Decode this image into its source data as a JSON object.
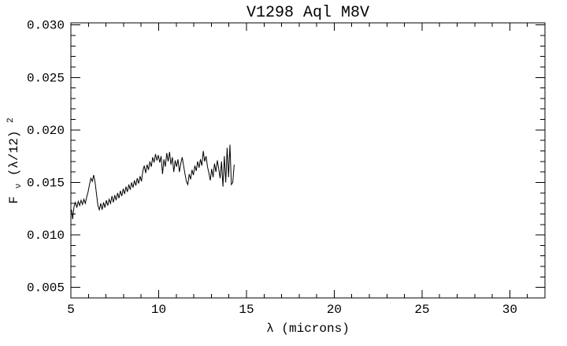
{
  "window": {
    "background": "#ffffff",
    "foreground": "#000000"
  },
  "chart_data": {
    "type": "line",
    "title": "V1298 Aql M8V",
    "xlabel": "λ (microns)",
    "ylabel": "Fν(λ/12)²",
    "ylabel_parts": {
      "base": "F",
      "sub": "ν",
      "mid": "(λ/12)",
      "sup": "2"
    },
    "xlim": [
      5,
      32
    ],
    "ylim": [
      0.004,
      0.0302
    ],
    "grid": false,
    "legend": "none",
    "line_color": "#000000",
    "x_ticks": {
      "major": [
        5,
        10,
        15,
        20,
        25,
        30
      ],
      "labels": [
        "5",
        "10",
        "15",
        "20",
        "25",
        "30"
      ],
      "minor_step": 1
    },
    "y_ticks": {
      "major": [
        0.005,
        0.01,
        0.015,
        0.02,
        0.025,
        0.03
      ],
      "labels": [
        "0.005",
        "0.010",
        "0.015",
        "0.020",
        "0.025",
        "0.030"
      ],
      "minor_step": 0.001
    },
    "series": [
      {
        "name": "V1298 Aql M8V spectrum",
        "points": [
          [
            5.04,
            0.0124
          ],
          [
            5.1,
            0.0115
          ],
          [
            5.18,
            0.0127
          ],
          [
            5.26,
            0.0131
          ],
          [
            5.34,
            0.0126
          ],
          [
            5.42,
            0.0132
          ],
          [
            5.5,
            0.0128
          ],
          [
            5.58,
            0.0133
          ],
          [
            5.66,
            0.0129
          ],
          [
            5.74,
            0.0134
          ],
          [
            5.82,
            0.013
          ],
          [
            5.9,
            0.0136
          ],
          [
            5.98,
            0.0141
          ],
          [
            6.06,
            0.0148
          ],
          [
            6.14,
            0.0154
          ],
          [
            6.22,
            0.0151
          ],
          [
            6.3,
            0.0157
          ],
          [
            6.38,
            0.015
          ],
          [
            6.46,
            0.0139
          ],
          [
            6.54,
            0.0128
          ],
          [
            6.62,
            0.0124
          ],
          [
            6.7,
            0.013
          ],
          [
            6.78,
            0.0124
          ],
          [
            6.86,
            0.0131
          ],
          [
            6.94,
            0.0126
          ],
          [
            7.02,
            0.0133
          ],
          [
            7.1,
            0.0128
          ],
          [
            7.18,
            0.0134
          ],
          [
            7.26,
            0.013
          ],
          [
            7.34,
            0.0137
          ],
          [
            7.42,
            0.0131
          ],
          [
            7.5,
            0.0138
          ],
          [
            7.58,
            0.0133
          ],
          [
            7.66,
            0.014
          ],
          [
            7.74,
            0.0135
          ],
          [
            7.82,
            0.0142
          ],
          [
            7.9,
            0.0137
          ],
          [
            7.98,
            0.0144
          ],
          [
            8.06,
            0.0139
          ],
          [
            8.14,
            0.0146
          ],
          [
            8.22,
            0.0141
          ],
          [
            8.3,
            0.0148
          ],
          [
            8.38,
            0.0143
          ],
          [
            8.46,
            0.015
          ],
          [
            8.54,
            0.0145
          ],
          [
            8.62,
            0.0152
          ],
          [
            8.7,
            0.0147
          ],
          [
            8.78,
            0.0154
          ],
          [
            8.86,
            0.0149
          ],
          [
            8.94,
            0.0156
          ],
          [
            9.02,
            0.0151
          ],
          [
            9.1,
            0.0161
          ],
          [
            9.18,
            0.0166
          ],
          [
            9.26,
            0.0159
          ],
          [
            9.34,
            0.0167
          ],
          [
            9.42,
            0.0162
          ],
          [
            9.5,
            0.017
          ],
          [
            9.58,
            0.0165
          ],
          [
            9.66,
            0.0174
          ],
          [
            9.74,
            0.0169
          ],
          [
            9.82,
            0.0177
          ],
          [
            9.9,
            0.0171
          ],
          [
            9.98,
            0.0176
          ],
          [
            10.06,
            0.0169
          ],
          [
            10.14,
            0.0175
          ],
          [
            10.22,
            0.0158
          ],
          [
            10.3,
            0.0172
          ],
          [
            10.38,
            0.0165
          ],
          [
            10.46,
            0.0178
          ],
          [
            10.54,
            0.017
          ],
          [
            10.62,
            0.0179
          ],
          [
            10.7,
            0.0167
          ],
          [
            10.78,
            0.0174
          ],
          [
            10.86,
            0.016
          ],
          [
            10.94,
            0.0171
          ],
          [
            11.02,
            0.0165
          ],
          [
            11.1,
            0.0172
          ],
          [
            11.18,
            0.016
          ],
          [
            11.26,
            0.0168
          ],
          [
            11.34,
            0.0174
          ],
          [
            11.42,
            0.0166
          ],
          [
            11.5,
            0.0158
          ],
          [
            11.58,
            0.0151
          ],
          [
            11.66,
            0.0148
          ],
          [
            11.74,
            0.0158
          ],
          [
            11.82,
            0.0153
          ],
          [
            11.9,
            0.0162
          ],
          [
            11.98,
            0.0157
          ],
          [
            12.06,
            0.0166
          ],
          [
            12.14,
            0.0161
          ],
          [
            12.22,
            0.017
          ],
          [
            12.3,
            0.0164
          ],
          [
            12.38,
            0.0172
          ],
          [
            12.46,
            0.0166
          ],
          [
            12.54,
            0.018
          ],
          [
            12.62,
            0.017
          ],
          [
            12.7,
            0.0175
          ],
          [
            12.78,
            0.0165
          ],
          [
            12.86,
            0.0159
          ],
          [
            12.94,
            0.0152
          ],
          [
            13.02,
            0.0163
          ],
          [
            13.1,
            0.0155
          ],
          [
            13.18,
            0.0168
          ],
          [
            13.26,
            0.016
          ],
          [
            13.34,
            0.0171
          ],
          [
            13.42,
            0.0163
          ],
          [
            13.5,
            0.0154
          ],
          [
            13.58,
            0.017
          ],
          [
            13.66,
            0.0146
          ],
          [
            13.74,
            0.0175
          ],
          [
            13.82,
            0.015
          ],
          [
            13.9,
            0.0183
          ],
          [
            13.98,
            0.0155
          ],
          [
            14.06,
            0.0186
          ],
          [
            14.14,
            0.0148
          ],
          [
            14.22,
            0.015
          ],
          [
            14.3,
            0.0167
          ]
        ]
      }
    ]
  }
}
